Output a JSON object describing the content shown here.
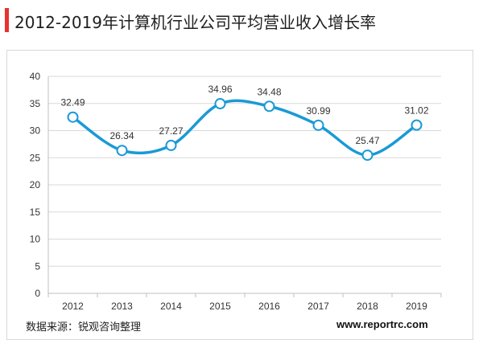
{
  "header": {
    "title": "2012-2019年计算机行业公司平均营业收入增长率",
    "accent_color": "#e8322e"
  },
  "footer": {
    "source": "数据来源：锐观咨询整理",
    "website": "www.reportrc.com"
  },
  "chart_data": {
    "type": "line",
    "smooth": true,
    "title": "2012-2019年计算机行业公司平均营业收入增长率",
    "xlabel": "",
    "ylabel": "",
    "categories": [
      "2012",
      "2013",
      "2014",
      "2015",
      "2016",
      "2017",
      "2018",
      "2019"
    ],
    "series": [
      {
        "values": [
          32.49,
          26.34,
          27.27,
          34.96,
          34.48,
          30.99,
          25.47,
          31.02
        ],
        "labels": [
          "32.49",
          "26.34",
          "27.27",
          "34.96",
          "34.48",
          "30.99",
          "25.47",
          "31.02"
        ],
        "color": "#1a9ad6"
      }
    ],
    "ylim": [
      0,
      40
    ],
    "yticks": [
      0,
      5,
      10,
      15,
      20,
      25,
      30,
      35,
      40
    ],
    "grid": true,
    "legend": "none",
    "marker": "hollow-circle"
  }
}
